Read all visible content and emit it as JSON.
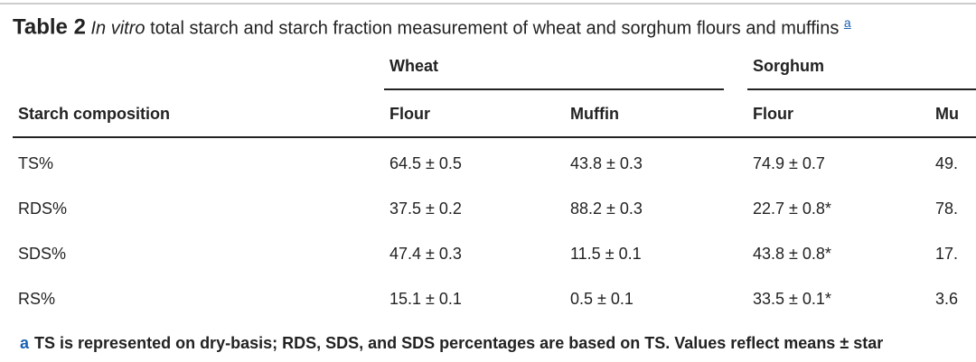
{
  "title": {
    "label": "Table 2",
    "italic": "In vitro",
    "text": "total starch and starch fraction measurement of wheat and sorghum flours and muffins",
    "footnote_ref": "a"
  },
  "table": {
    "groups": [
      "Wheat",
      "Sorghum"
    ],
    "header": [
      "Starch composition",
      "Flour",
      "Muffin",
      "Flour",
      "Mu"
    ],
    "rows": [
      [
        "TS%",
        "64.5 ± 0.5",
        "43.8 ± 0.3",
        "74.9 ± 0.7",
        "49."
      ],
      [
        "RDS%",
        "37.5 ± 0.2",
        "88.2 ± 0.3",
        "22.7 ± 0.8*",
        "78."
      ],
      [
        "SDS%",
        "47.4 ± 0.3",
        "11.5 ± 0.1",
        "43.8 ± 0.8*",
        "17."
      ],
      [
        "RS%",
        "15.1 ± 0.1",
        "0.5 ± 0.1",
        "33.5 ± 0.1*",
        "3.6"
      ]
    ]
  },
  "footnote": {
    "marker": "a",
    "text": "TS is represented on dry-basis; RDS, SDS, and SDS percentages are based on TS. Values reflect means ± star"
  }
}
